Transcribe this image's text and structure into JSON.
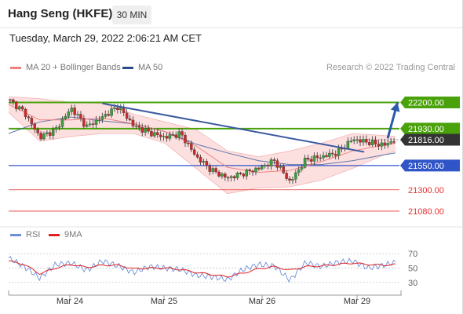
{
  "header": {
    "title": "Hang Seng (HKFE)",
    "timeframe": "30 MIN"
  },
  "date_text": "Tuesday, March 29, 2022 2:06:21 AM CET",
  "legend": {
    "ma20_label": "MA 20 + Bollinger Bands",
    "ma50_label": "MA 50",
    "research_text": "Research © 2022 Trading Central"
  },
  "rsi_legend": {
    "rsi_label": "RSI",
    "ma9_label": "9MA"
  },
  "colors": {
    "green": "#4aa20a",
    "blue": "#3055c8",
    "red": "#e83030",
    "ma20": "#f08080",
    "ma50": "#3a5a9a",
    "band": "#fbd6d6",
    "trend": "#3a5aa0",
    "current": "#333333",
    "arrow": "#2a5aa8",
    "rsi": "#6c8edb",
    "rsi_ma": "#e02020"
  },
  "chart_data": [
    {
      "type": "line",
      "title": "Hang Seng (HKFE)",
      "timeframe": "30 MIN",
      "x_labels": [
        "Mar 24",
        "Mar 25",
        "Mar 26",
        "Mar 29"
      ],
      "ylim": [
        20950,
        22350
      ],
      "levels": [
        {
          "value": 22200,
          "label": "22200.00",
          "kind": "resistance"
        },
        {
          "value": 21930,
          "label": "21930.00",
          "kind": "resistance"
        },
        {
          "value": 21816,
          "label": "21816.00",
          "kind": "current"
        },
        {
          "value": 21550,
          "label": "21550.00",
          "kind": "pivot"
        },
        {
          "value": 21300,
          "label": "21300.00",
          "kind": "support"
        },
        {
          "value": 21080,
          "label": "21080.00",
          "kind": "support"
        }
      ],
      "price_series": [
        {
          "x": 0,
          "y": 22230
        },
        {
          "x": 4,
          "y": 22100
        },
        {
          "x": 8,
          "y": 21840
        },
        {
          "x": 12,
          "y": 21920
        },
        {
          "x": 16,
          "y": 22140
        },
        {
          "x": 20,
          "y": 21950
        },
        {
          "x": 24,
          "y": 22050
        },
        {
          "x": 28,
          "y": 22160
        },
        {
          "x": 32,
          "y": 21960
        },
        {
          "x": 36,
          "y": 21890
        },
        {
          "x": 40,
          "y": 21840
        },
        {
          "x": 44,
          "y": 21880
        },
        {
          "x": 48,
          "y": 21640
        },
        {
          "x": 52,
          "y": 21500
        },
        {
          "x": 56,
          "y": 21420
        },
        {
          "x": 60,
          "y": 21470
        },
        {
          "x": 64,
          "y": 21520
        },
        {
          "x": 68,
          "y": 21600
        },
        {
          "x": 72,
          "y": 21380
        },
        {
          "x": 76,
          "y": 21610
        },
        {
          "x": 80,
          "y": 21640
        },
        {
          "x": 84,
          "y": 21680
        },
        {
          "x": 88,
          "y": 21820
        },
        {
          "x": 92,
          "y": 21790
        },
        {
          "x": 96,
          "y": 21760
        },
        {
          "x": 99,
          "y": 21816
        }
      ],
      "ma20": [
        {
          "x": 0,
          "y": 22180
        },
        {
          "x": 8,
          "y": 22020
        },
        {
          "x": 16,
          "y": 22020
        },
        {
          "x": 24,
          "y": 22040
        },
        {
          "x": 32,
          "y": 21980
        },
        {
          "x": 40,
          "y": 21900
        },
        {
          "x": 48,
          "y": 21750
        },
        {
          "x": 56,
          "y": 21530
        },
        {
          "x": 64,
          "y": 21480
        },
        {
          "x": 72,
          "y": 21500
        },
        {
          "x": 80,
          "y": 21590
        },
        {
          "x": 88,
          "y": 21700
        },
        {
          "x": 96,
          "y": 21760
        },
        {
          "x": 99,
          "y": 21780
        }
      ],
      "ma50": [
        {
          "x": 0,
          "y": 21880
        },
        {
          "x": 8,
          "y": 22000
        },
        {
          "x": 16,
          "y": 22050
        },
        {
          "x": 24,
          "y": 22010
        },
        {
          "x": 32,
          "y": 21980
        },
        {
          "x": 40,
          "y": 21900
        },
        {
          "x": 48,
          "y": 21770
        },
        {
          "x": 56,
          "y": 21680
        },
        {
          "x": 64,
          "y": 21600
        },
        {
          "x": 72,
          "y": 21560
        },
        {
          "x": 80,
          "y": 21560
        },
        {
          "x": 88,
          "y": 21600
        },
        {
          "x": 96,
          "y": 21660
        },
        {
          "x": 99,
          "y": 21680
        }
      ],
      "bollinger_upper": [
        {
          "x": 0,
          "y": 22260
        },
        {
          "x": 8,
          "y": 22240
        },
        {
          "x": 16,
          "y": 22200
        },
        {
          "x": 24,
          "y": 22190
        },
        {
          "x": 32,
          "y": 22080
        },
        {
          "x": 40,
          "y": 22000
        },
        {
          "x": 48,
          "y": 21920
        },
        {
          "x": 56,
          "y": 21700
        },
        {
          "x": 64,
          "y": 21640
        },
        {
          "x": 72,
          "y": 21700
        },
        {
          "x": 80,
          "y": 21780
        },
        {
          "x": 88,
          "y": 21880
        },
        {
          "x": 96,
          "y": 21860
        },
        {
          "x": 99,
          "y": 21850
        }
      ],
      "bollinger_lower": [
        {
          "x": 0,
          "y": 22100
        },
        {
          "x": 8,
          "y": 21800
        },
        {
          "x": 16,
          "y": 21850
        },
        {
          "x": 24,
          "y": 21880
        },
        {
          "x": 32,
          "y": 21880
        },
        {
          "x": 40,
          "y": 21780
        },
        {
          "x": 48,
          "y": 21520
        },
        {
          "x": 56,
          "y": 21260
        },
        {
          "x": 64,
          "y": 21320
        },
        {
          "x": 72,
          "y": 21330
        },
        {
          "x": 80,
          "y": 21400
        },
        {
          "x": 88,
          "y": 21520
        },
        {
          "x": 96,
          "y": 21660
        },
        {
          "x": 99,
          "y": 21700
        }
      ],
      "trendline": [
        {
          "x": 24,
          "y": 22190
        },
        {
          "x": 91,
          "y": 21690
        }
      ],
      "forecast_arrow": [
        {
          "x": 97,
          "y": 21830
        },
        {
          "x": 99.5,
          "y": 22200
        }
      ]
    },
    {
      "type": "line",
      "title": "RSI",
      "ylim": [
        20,
        80
      ],
      "yticks": [
        70,
        50,
        30
      ],
      "guides": [
        70,
        50,
        30
      ],
      "rsi": [
        {
          "x": 0,
          "y": 64
        },
        {
          "x": 4,
          "y": 52
        },
        {
          "x": 8,
          "y": 36
        },
        {
          "x": 12,
          "y": 55
        },
        {
          "x": 16,
          "y": 57
        },
        {
          "x": 20,
          "y": 47
        },
        {
          "x": 24,
          "y": 60
        },
        {
          "x": 28,
          "y": 53
        },
        {
          "x": 32,
          "y": 44
        },
        {
          "x": 36,
          "y": 52
        },
        {
          "x": 40,
          "y": 50
        },
        {
          "x": 44,
          "y": 48
        },
        {
          "x": 48,
          "y": 40
        },
        {
          "x": 52,
          "y": 38
        },
        {
          "x": 56,
          "y": 34
        },
        {
          "x": 60,
          "y": 48
        },
        {
          "x": 64,
          "y": 55
        },
        {
          "x": 68,
          "y": 53
        },
        {
          "x": 72,
          "y": 33
        },
        {
          "x": 76,
          "y": 58
        },
        {
          "x": 80,
          "y": 52
        },
        {
          "x": 84,
          "y": 58
        },
        {
          "x": 88,
          "y": 60
        },
        {
          "x": 92,
          "y": 50
        },
        {
          "x": 96,
          "y": 54
        },
        {
          "x": 99,
          "y": 58
        }
      ],
      "rsi_ma9": [
        {
          "x": 0,
          "y": 60
        },
        {
          "x": 4,
          "y": 55
        },
        {
          "x": 8,
          "y": 42
        },
        {
          "x": 12,
          "y": 50
        },
        {
          "x": 16,
          "y": 55
        },
        {
          "x": 20,
          "y": 51
        },
        {
          "x": 24,
          "y": 54
        },
        {
          "x": 28,
          "y": 54
        },
        {
          "x": 32,
          "y": 49
        },
        {
          "x": 36,
          "y": 50
        },
        {
          "x": 40,
          "y": 50
        },
        {
          "x": 44,
          "y": 48
        },
        {
          "x": 48,
          "y": 44
        },
        {
          "x": 52,
          "y": 41
        },
        {
          "x": 56,
          "y": 38
        },
        {
          "x": 60,
          "y": 43
        },
        {
          "x": 64,
          "y": 49
        },
        {
          "x": 68,
          "y": 52
        },
        {
          "x": 72,
          "y": 47
        },
        {
          "x": 76,
          "y": 52
        },
        {
          "x": 80,
          "y": 53
        },
        {
          "x": 84,
          "y": 55
        },
        {
          "x": 88,
          "y": 57
        },
        {
          "x": 92,
          "y": 55
        },
        {
          "x": 96,
          "y": 54
        },
        {
          "x": 99,
          "y": 55
        }
      ]
    }
  ]
}
